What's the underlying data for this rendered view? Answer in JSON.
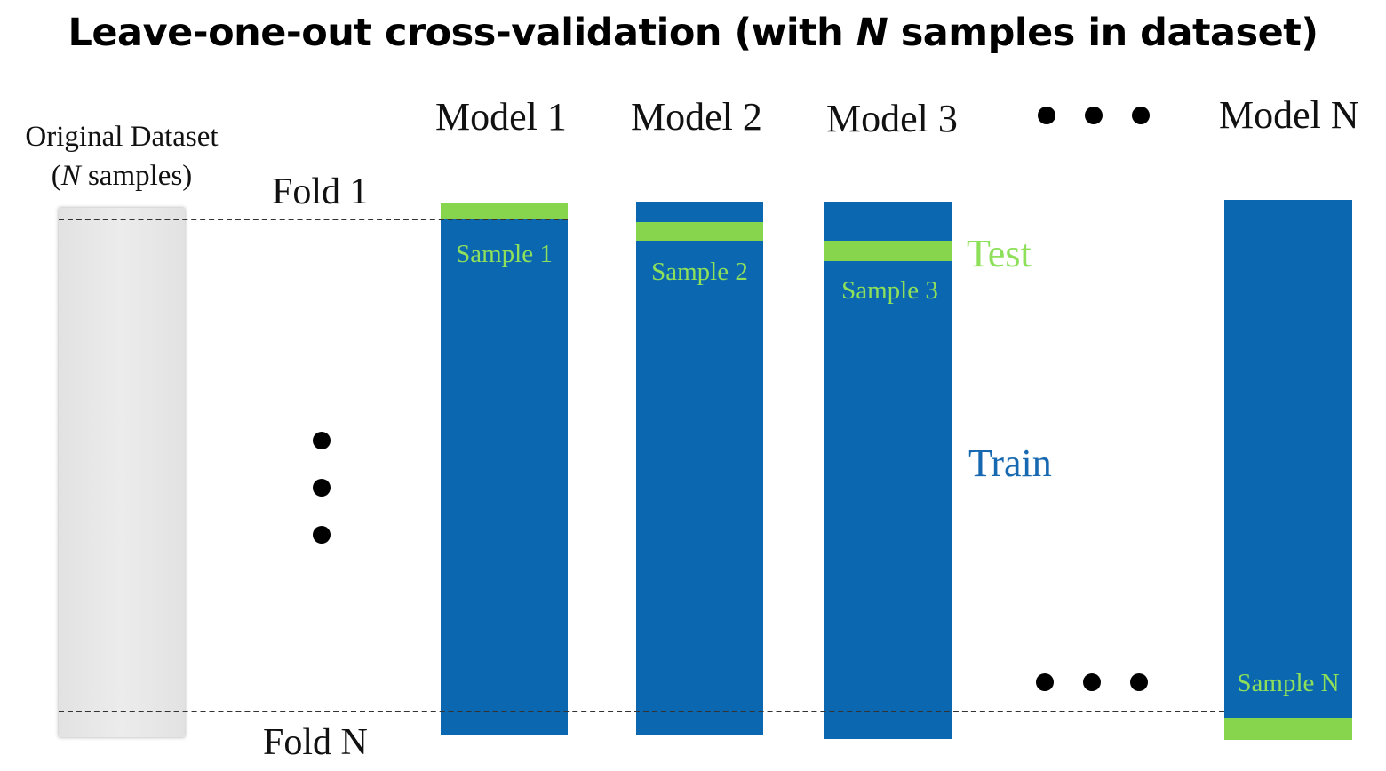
{
  "title": {
    "before": "Leave-one-out cross-validation (with ",
    "italic": "N",
    "after": " samples in dataset)"
  },
  "original_dataset": {
    "line1": "Original Dataset",
    "line2_paren_open": "(",
    "line2_italic": "N",
    "line2_rest": " samples)"
  },
  "folds": {
    "first": "Fold 1",
    "last": "Fold N"
  },
  "models": [
    {
      "label": "Model 1",
      "sample_label": "Sample 1"
    },
    {
      "label": "Model 2",
      "sample_label": "Sample 2"
    },
    {
      "label": "Model 3",
      "sample_label": "Sample 3"
    },
    {
      "label": "Model N",
      "sample_label": "Sample N"
    }
  ],
  "legend": {
    "test": "Test",
    "train": "Train"
  },
  "colors": {
    "train": "#0b67b0",
    "test": "#87d54c",
    "dataset": "#e6e6e6"
  }
}
